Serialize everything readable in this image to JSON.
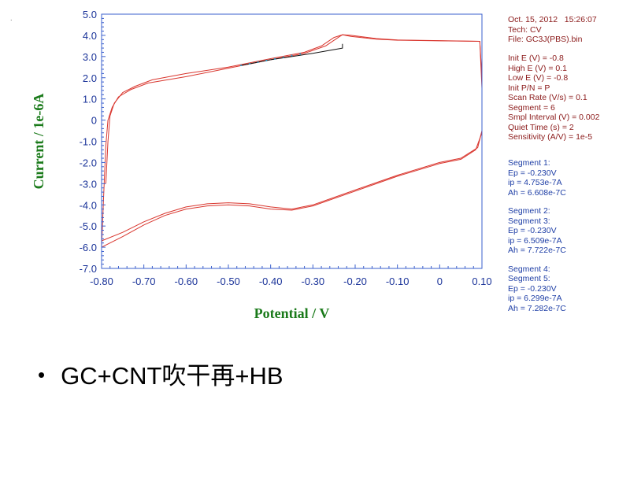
{
  "slide": {
    "bullet": "GC+CNT吹干再+HB",
    "corner_mark": "."
  },
  "info": {
    "header": [
      "Oct. 15, 2012   15:26:07",
      "Tech: CV",
      "File: GC3J(PBS).bin"
    ],
    "params": [
      "Init E (V) = -0.8",
      "High E (V) = 0.1",
      "Low E (V) = -0.8",
      "Init P/N = P",
      "Scan Rate (V/s) = 0.1",
      "Segment = 6",
      "Smpl Interval (V) = 0.002",
      "Quiet Time (s) = 2",
      "Sensitivity (A/V) = 1e-5"
    ],
    "segment_blocks": [
      [
        "Segment 1:",
        "Ep = -0.230V",
        "ip = 4.753e-7A",
        "Ah = 6.608e-7C"
      ],
      [
        "Segment 2:",
        "Segment 3:",
        "Ep = -0.230V",
        "ip = 6.509e-7A",
        "Ah = 7.722e-7C"
      ],
      [
        "Segment 4:",
        "Segment 5:",
        "Ep = -0.230V",
        "ip = 6.299e-7A",
        "Ah = 7.282e-7C"
      ]
    ],
    "colors": {
      "header": "#8b1a1a",
      "segments": "#1f3fa6"
    }
  },
  "chart_data": {
    "type": "line",
    "xlabel": "Potential / V",
    "ylabel": "Current / 1e-6A",
    "xlim": [
      -0.8,
      0.1
    ],
    "ylim": [
      -7.0,
      5.0
    ],
    "x_ticks": [
      "-0.80",
      "-0.70",
      "-0.60",
      "-0.50",
      "-0.40",
      "-0.30",
      "-0.20",
      "-0.10",
      "0",
      "0.10"
    ],
    "y_ticks": [
      "5.0",
      "4.0",
      "3.0",
      "2.0",
      "1.0",
      "0",
      "-1.0",
      "-2.0",
      "-3.0",
      "-4.0",
      "-5.0",
      "-6.0",
      "-7.0"
    ],
    "x_reversed_scan": true,
    "colors": {
      "curve": "#d9362e",
      "baseline": "#111111",
      "axis_label": "#1a7a1a",
      "frame": "#3a5fcd",
      "tick_label": "#1a3399",
      "marker": "#1a9fd1"
    },
    "series": [
      {
        "color": "#d9362e",
        "points": [
          [
            -0.79,
            -3.0
          ],
          [
            -0.785,
            -1.0
          ],
          [
            -0.78,
            0.2
          ],
          [
            -0.77,
            0.8
          ],
          [
            -0.75,
            1.3
          ],
          [
            -0.72,
            1.6
          ],
          [
            -0.68,
            1.9
          ],
          [
            -0.6,
            2.2
          ],
          [
            -0.5,
            2.5
          ],
          [
            -0.4,
            2.9
          ],
          [
            -0.32,
            3.2
          ],
          [
            -0.28,
            3.5
          ],
          [
            -0.25,
            3.9
          ],
          [
            -0.23,
            4.03
          ],
          [
            -0.21,
            4.0
          ],
          [
            -0.15,
            3.85
          ],
          [
            -0.1,
            3.78
          ],
          [
            0.0,
            3.75
          ],
          [
            0.095,
            3.72
          ],
          [
            0.1,
            2.0
          ],
          [
            0.1,
            -0.5
          ],
          [
            0.09,
            -1.3
          ],
          [
            0.05,
            -1.8
          ],
          [
            0.0,
            -2.0
          ],
          [
            -0.1,
            -2.6
          ],
          [
            -0.2,
            -3.3
          ],
          [
            -0.3,
            -4.0
          ],
          [
            -0.35,
            -4.2
          ],
          [
            -0.4,
            -4.1
          ],
          [
            -0.45,
            -3.95
          ],
          [
            -0.5,
            -3.9
          ],
          [
            -0.55,
            -3.95
          ],
          [
            -0.6,
            -4.1
          ],
          [
            -0.65,
            -4.4
          ],
          [
            -0.7,
            -4.8
          ],
          [
            -0.75,
            -5.3
          ],
          [
            -0.8,
            -5.7
          ]
        ]
      },
      {
        "color": "#d9362e",
        "points": [
          [
            -0.8,
            -6.0
          ],
          [
            -0.795,
            -3.5
          ],
          [
            -0.79,
            -1.2
          ],
          [
            -0.785,
            0.0
          ],
          [
            -0.775,
            0.6
          ],
          [
            -0.76,
            1.1
          ],
          [
            -0.73,
            1.45
          ],
          [
            -0.69,
            1.75
          ],
          [
            -0.6,
            2.05
          ],
          [
            -0.5,
            2.45
          ],
          [
            -0.4,
            2.85
          ],
          [
            -0.32,
            3.15
          ],
          [
            -0.27,
            3.5
          ],
          [
            -0.24,
            3.9
          ],
          [
            -0.23,
            4.03
          ],
          [
            -0.21,
            3.95
          ],
          [
            -0.15,
            3.82
          ],
          [
            -0.1,
            3.77
          ],
          [
            0.0,
            3.74
          ],
          [
            0.095,
            3.72
          ],
          [
            0.1,
            1.5
          ],
          [
            0.1,
            -0.6
          ],
          [
            0.085,
            -1.4
          ],
          [
            0.05,
            -1.85
          ],
          [
            0.0,
            -2.05
          ],
          [
            -0.1,
            -2.65
          ],
          [
            -0.2,
            -3.35
          ],
          [
            -0.3,
            -4.05
          ],
          [
            -0.35,
            -4.25
          ],
          [
            -0.4,
            -4.2
          ],
          [
            -0.45,
            -4.05
          ],
          [
            -0.5,
            -4.0
          ],
          [
            -0.55,
            -4.05
          ],
          [
            -0.6,
            -4.2
          ],
          [
            -0.65,
            -4.5
          ],
          [
            -0.7,
            -4.95
          ],
          [
            -0.75,
            -5.5
          ],
          [
            -0.8,
            -6.0
          ]
        ]
      },
      {
        "color": "#111111",
        "points": [
          [
            -0.47,
            2.58
          ],
          [
            -0.4,
            2.85
          ],
          [
            -0.3,
            3.15
          ],
          [
            -0.23,
            3.4
          ],
          [
            -0.23,
            3.6
          ]
        ]
      }
    ]
  }
}
